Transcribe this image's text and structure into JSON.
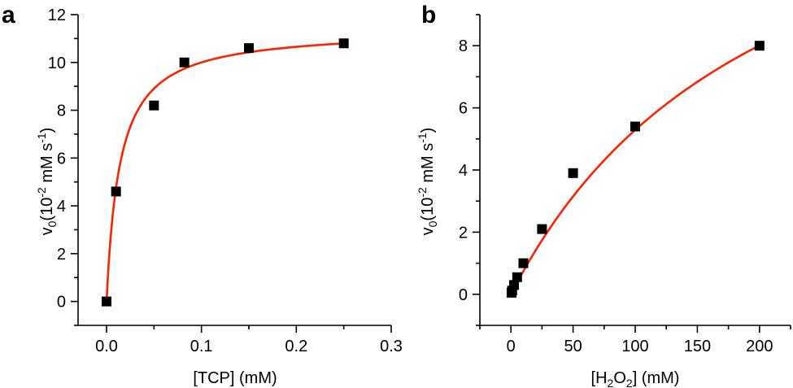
{
  "panels": {
    "a": {
      "letter": "a",
      "xlabel": "[TCP] (mM)",
      "ylabel": {
        "main": "v",
        "sub": "0",
        "open": "(10",
        "sup1": "-2",
        "unit": " mM s",
        "sup2": "-1",
        "close": ")"
      }
    },
    "b": {
      "letter": "b",
      "xlabel": {
        "open": "[H",
        "sub1": "2",
        "mid": "O",
        "sub2": "2",
        "close": "] (mM)"
      },
      "ylabel": {
        "main": "v",
        "sub": "0",
        "open": "(10",
        "sup1": "-2",
        "unit": " mM s",
        "sup2": "-1",
        "close": ")"
      }
    }
  },
  "chart_data": [
    {
      "panel": "a",
      "type": "scatter",
      "xlabel": "[TCP] (mM)",
      "ylabel": "v0 (10^-2 mM s^-1)",
      "xlim": [
        -0.03,
        0.3
      ],
      "ylim": [
        -1,
        12
      ],
      "x_ticks": [
        0.0,
        0.1,
        0.2,
        0.3
      ],
      "x_tick_labels": [
        "0.0",
        "0.1",
        "0.2",
        "0.3"
      ],
      "y_ticks": [
        0,
        2,
        4,
        6,
        8,
        10,
        12
      ],
      "y_tick_labels": [
        "0",
        "2",
        "4",
        "6",
        "8",
        "10",
        "12"
      ],
      "grid": false,
      "marker_color": "#000000",
      "curve_color": "#ff2200",
      "series": [
        {
          "points": [
            {
              "x": 0.0,
              "y": 0.0
            },
            {
              "x": 0.01,
              "y": 4.6
            },
            {
              "x": 0.05,
              "y": 8.2
            },
            {
              "x": 0.082,
              "y": 10.0
            },
            {
              "x": 0.15,
              "y": 10.6
            },
            {
              "x": 0.25,
              "y": 10.8
            }
          ]
        }
      ],
      "fit": {
        "model": "michaelis-menten",
        "vmax": 11.4,
        "km": 0.014,
        "x_range": [
          0.0,
          0.25
        ]
      }
    },
    {
      "panel": "b",
      "type": "scatter",
      "xlabel": "[H2O2] (mM)",
      "ylabel": "v0 (10^-2 mM s^-1)",
      "xlim": [
        -25,
        225
      ],
      "ylim": [
        -1,
        9
      ],
      "x_ticks": [
        0,
        50,
        100,
        150,
        200
      ],
      "x_tick_labels": [
        "0",
        "50",
        "100",
        "150",
        "200"
      ],
      "y_ticks": [
        0,
        2,
        4,
        6,
        8
      ],
      "y_tick_labels": [
        "0",
        "2",
        "4",
        "6",
        "8"
      ],
      "grid": false,
      "marker_color": "#000000",
      "curve_color": "#ff2200",
      "series": [
        {
          "points": [
            {
              "x": 0.5,
              "y": 0.05
            },
            {
              "x": 1.0,
              "y": 0.12
            },
            {
              "x": 2.5,
              "y": 0.3
            },
            {
              "x": 5.0,
              "y": 0.55
            },
            {
              "x": 10.0,
              "y": 1.0
            },
            {
              "x": 25.0,
              "y": 2.1
            },
            {
              "x": 50.0,
              "y": 3.9
            },
            {
              "x": 100.0,
              "y": 5.4
            },
            {
              "x": 200.0,
              "y": 8.0
            }
          ]
        }
      ],
      "fit": {
        "model": "michaelis-menten",
        "vmax": 16.5,
        "km": 212,
        "x_range": [
          0.0,
          200.0
        ]
      }
    }
  ]
}
